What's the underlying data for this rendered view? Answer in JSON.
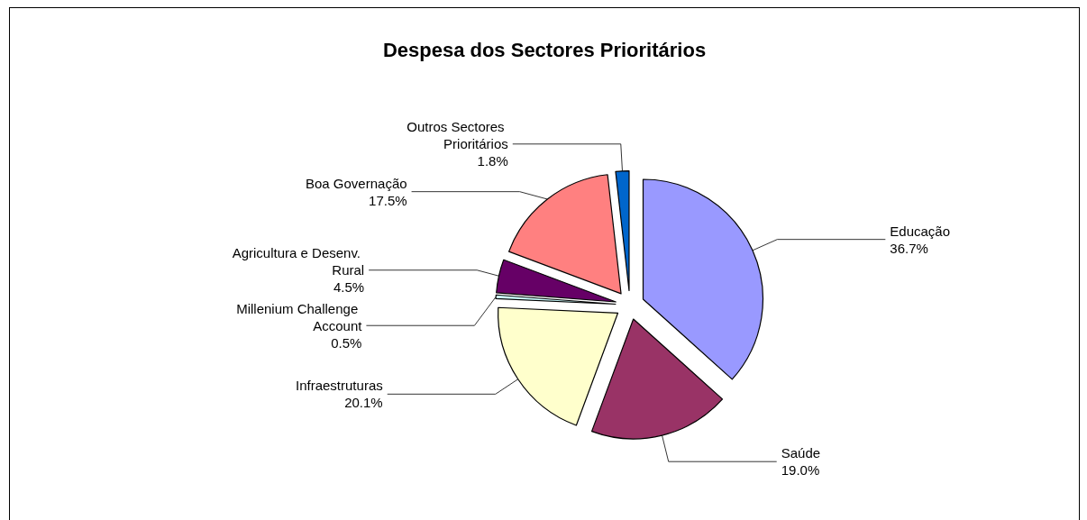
{
  "chart_data": {
    "type": "pie",
    "title": "Despesa dos Sectores Prioritários",
    "categories": [
      "Educação",
      "Saúde",
      "Infraestruturas",
      "Millenium Challenge Account",
      "Agricultura e Desenv. Rural",
      "Boa Governação",
      "Outros Sectores Prioritários"
    ],
    "values": [
      36.7,
      19.0,
      20.1,
      0.5,
      4.5,
      17.5,
      1.8
    ],
    "value_labels": [
      "36.7%",
      "19.0%",
      "20.1%",
      "0.5%",
      "4.5%",
      "17.5%",
      "1.8%"
    ],
    "colors": [
      "#9999ff",
      "#993366",
      "#ffffcc",
      "#ccffff",
      "#660066",
      "#ff8080",
      "#0066cc"
    ],
    "legend": false
  }
}
